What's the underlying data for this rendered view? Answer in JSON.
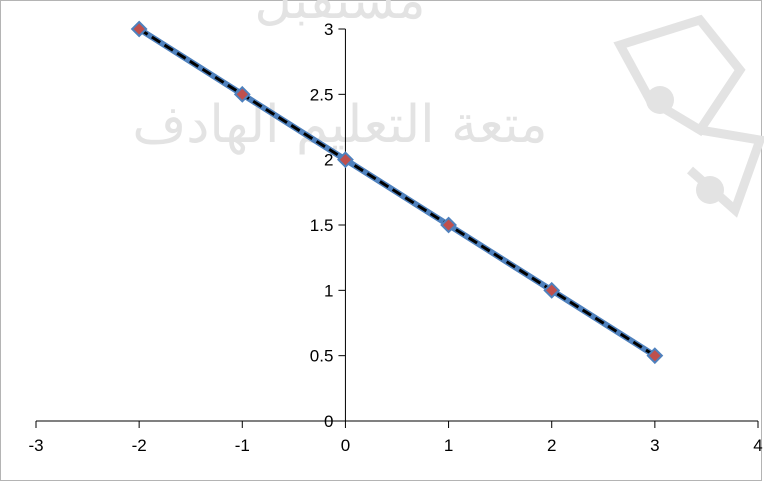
{
  "watermark": {
    "tagline": "متعة التعليم الهادف",
    "brand": "مستقبل"
  },
  "colors": {
    "series_line": "#4f81bd",
    "fit_line": "#000000",
    "marker_fill": "#c0504d",
    "marker_outline": "#4f81bd",
    "axis": "#000000",
    "watermark": "#e3e3e3"
  },
  "chart_data": {
    "type": "line",
    "title": "",
    "xlabel": "",
    "ylabel": "",
    "xlim": [
      -3,
      4
    ],
    "ylim": [
      0,
      3
    ],
    "x_ticks": [
      -3,
      -2,
      -1,
      0,
      1,
      2,
      3,
      4
    ],
    "y_ticks": [
      0,
      0.5,
      1,
      1.5,
      2,
      2.5,
      3
    ],
    "x_tick_labels": [
      "-3",
      "-2",
      "-1",
      "0",
      "1",
      "2",
      "3",
      "4"
    ],
    "y_tick_labels": [
      "0",
      "0.5",
      "1",
      "1.5",
      "2",
      "2.5",
      "3"
    ],
    "grid": false,
    "legend": "none",
    "series": [
      {
        "x": [
          -2,
          -1,
          0,
          1,
          2,
          3
        ],
        "y": [
          3,
          2.5,
          2,
          1.5,
          1,
          0.5
        ],
        "style": "solid line with diamond markers"
      },
      {
        "x": [
          -2,
          3
        ],
        "y": [
          3,
          0.5
        ],
        "style": "dashed line"
      }
    ]
  }
}
